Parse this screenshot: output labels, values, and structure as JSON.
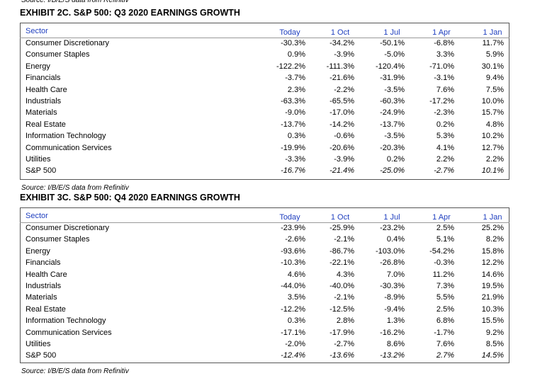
{
  "top_source": "Source: I/B/E/S data from Refinitiv",
  "exhibits": [
    {
      "title": "EXHIBIT 2C.  S&P 500: Q3 2020 EARNINGS GROWTH",
      "header": [
        "Sector",
        "Today",
        "1 Oct",
        "1 Jul",
        "1 Apr",
        "1 Jan"
      ],
      "rows": [
        [
          "Consumer Discretionary",
          "-30.3%",
          "-34.2%",
          "-50.1%",
          "-6.8%",
          "11.7%"
        ],
        [
          "Consumer Staples",
          "0.9%",
          "-3.9%",
          "-5.0%",
          "3.3%",
          "5.9%"
        ],
        [
          "Energy",
          "-122.2%",
          "-111.3%",
          "-120.4%",
          "-71.0%",
          "30.1%"
        ],
        [
          "Financials",
          "-3.7%",
          "-21.6%",
          "-31.9%",
          "-3.1%",
          "9.4%"
        ],
        [
          "Health Care",
          "2.3%",
          "-2.2%",
          "-3.5%",
          "7.6%",
          "7.5%"
        ],
        [
          "Industrials",
          "-63.3%",
          "-65.5%",
          "-60.3%",
          "-17.2%",
          "10.0%"
        ],
        [
          "Materials",
          "-9.0%",
          "-17.0%",
          "-24.9%",
          "-2.3%",
          "15.7%"
        ],
        [
          "Real Estate",
          "-13.7%",
          "-14.2%",
          "-13.7%",
          "0.2%",
          "4.8%"
        ],
        [
          "Information Technology",
          "0.3%",
          "-0.6%",
          "-3.5%",
          "5.3%",
          "10.2%"
        ],
        [
          "Communication Services",
          "-19.9%",
          "-20.6%",
          "-20.3%",
          "4.1%",
          "12.7%"
        ],
        [
          "Utilities",
          "-3.3%",
          "-3.9%",
          "0.2%",
          "2.2%",
          "2.2%"
        ],
        [
          "S&P 500",
          "-16.7%",
          "-21.4%",
          "-25.0%",
          "-2.7%",
          "10.1%"
        ]
      ],
      "source": "Source: I/B/E/S data from Refinitiv"
    },
    {
      "title": "EXHIBIT 3C.  S&P 500: Q4 2020 EARNINGS GROWTH",
      "header": [
        "Sector",
        "Today",
        "1 Oct",
        "1 Jul",
        "1 Apr",
        "1 Jan"
      ],
      "rows": [
        [
          "Consumer Discretionary",
          "-23.9%",
          "-25.9%",
          "-23.2%",
          "2.5%",
          "25.2%"
        ],
        [
          "Consumer Staples",
          "-2.6%",
          "-2.1%",
          "0.4%",
          "5.1%",
          "8.2%"
        ],
        [
          "Energy",
          "-93.6%",
          "-86.7%",
          "-103.0%",
          "-54.2%",
          "15.8%"
        ],
        [
          "Financials",
          "-10.3%",
          "-22.1%",
          "-26.8%",
          "-0.3%",
          "12.2%"
        ],
        [
          "Health Care",
          "4.6%",
          "4.3%",
          "7.0%",
          "11.2%",
          "14.6%"
        ],
        [
          "Industrials",
          "-44.0%",
          "-40.0%",
          "-30.3%",
          "7.3%",
          "19.5%"
        ],
        [
          "Materials",
          "3.5%",
          "-2.1%",
          "-8.9%",
          "5.5%",
          "21.9%"
        ],
        [
          "Real Estate",
          "-12.2%",
          "-12.5%",
          "-9.4%",
          "2.5%",
          "10.3%"
        ],
        [
          "Information Technology",
          "0.3%",
          "2.8%",
          "1.3%",
          "6.8%",
          "15.5%"
        ],
        [
          "Communication Services",
          "-17.1%",
          "-17.9%",
          "-16.2%",
          "-1.7%",
          "9.2%"
        ],
        [
          "Utilities",
          "-2.0%",
          "-2.7%",
          "8.6%",
          "7.6%",
          "8.5%"
        ],
        [
          "S&P 500",
          "-12.4%",
          "-13.6%",
          "-13.2%",
          "2.7%",
          "14.5%"
        ]
      ],
      "source": "Source: I/B/E/S data from Refinitiv"
    }
  ]
}
